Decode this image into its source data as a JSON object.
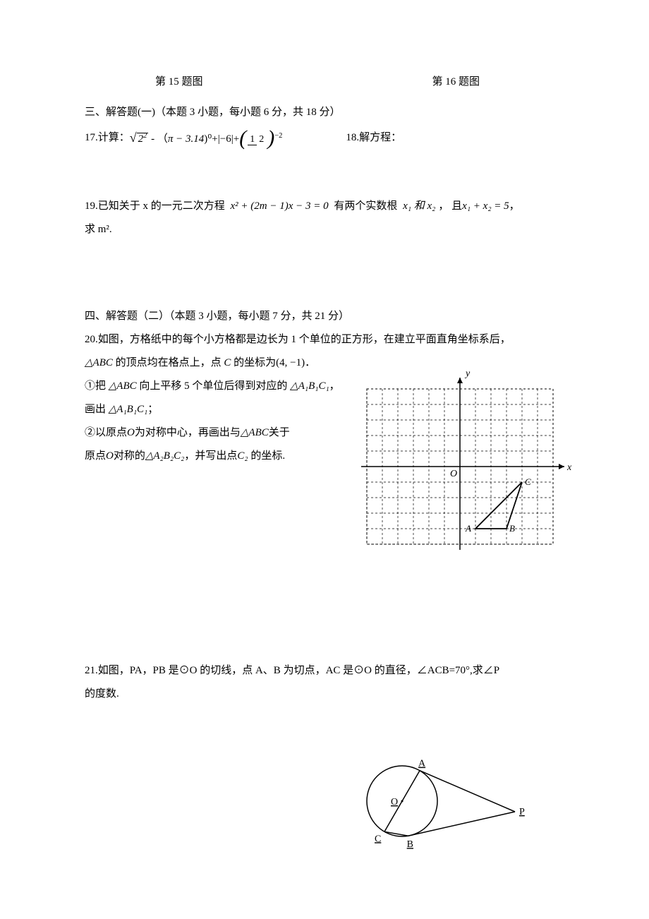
{
  "captions": {
    "fig15": "第 15 题图",
    "fig16": "第 16 题图"
  },
  "sec3": {
    "heading": "三、解答题(一)（本题 3 小题，每小题 6 分，共 18 分）",
    "q17_prefix": "17.计算：",
    "q17_sqrt_arg": "2",
    "q17_sqrt_exp": "2",
    "q17_minus": "-  （",
    "q17_pi": "π − 3.14",
    "q17_pwr0": ")⁰+",
    "q17_abs": "|−6|",
    "q17_plus": "+",
    "q17_frac_n": "1",
    "q17_frac_d": "2",
    "q17_frac_exp": "−2",
    "q18_prefix": "18.解方程：",
    "q19_a": "19.已知关于 x 的一元二次方程",
    "q19_eq": "x² + (2m − 1)x − 3 = 0",
    "q19_b": "有两个实数根",
    "q19_roots": "x₁ 和 x₂",
    "q19_c": "，  且",
    "q19_sum": "x₁ + x₂ = 5",
    "q19_d": "，",
    "q19_e": "求 m²."
  },
  "sec4": {
    "heading": "四、解答题（二）（本题 3 小题，每小题 7 分，共 21 分）",
    "q20_a": "20.如图，方格纸中的每个小方格都是边长为 1 个单位的正方形，在建立平面直角坐标系后，",
    "q20_b_pre": "△ABC",
    "q20_b_mid": " 的顶点均在格点上，点 ",
    "q20_b_C": "C",
    "q20_b_tail": " 的坐标为",
    "q20_coord": "(4, −1)",
    "q20_b_end": "．",
    "q20_p1_a": "①把",
    "q20_tri": "△ABC",
    "q20_p1_b": "向上平移 5 个单位后得到对应的",
    "q20_tri1": "△A₁B₁C₁",
    "q20_p1_c": "，",
    "q20_p1_d": "画出",
    "q20_p1_e": "；",
    "q20_p2_a": "②以原点",
    "q20_O": "O",
    "q20_p2_b": "为对称中心，再画出与",
    "q20_p2_c": "关于",
    "q20_p2_d": "原点",
    "q20_p2_e": "对称的",
    "q20_tri2": "△A₂B₂C₂",
    "q20_p2_f": "，并写出点",
    "q20_C2": "C₂",
    "q20_p2_g": " 的坐标.",
    "q21_a": "21.如图，PA，PB 是⊙O 的切线，点 A、B 为切点，AC 是⊙O 的直径，∠ACB=70°,求∠P",
    "q21_b": "的度数."
  },
  "grid_labels": {
    "y": "y",
    "x": "x",
    "O": "O",
    "A": "A",
    "B": "B",
    "C": "C"
  },
  "circle_labels": {
    "A": "A",
    "O": "O",
    "B": "B",
    "C": "C",
    "P": "P"
  },
  "colors": {
    "text": "#000000",
    "bg": "#ffffff",
    "dash": "#000000",
    "line": "#000000"
  }
}
